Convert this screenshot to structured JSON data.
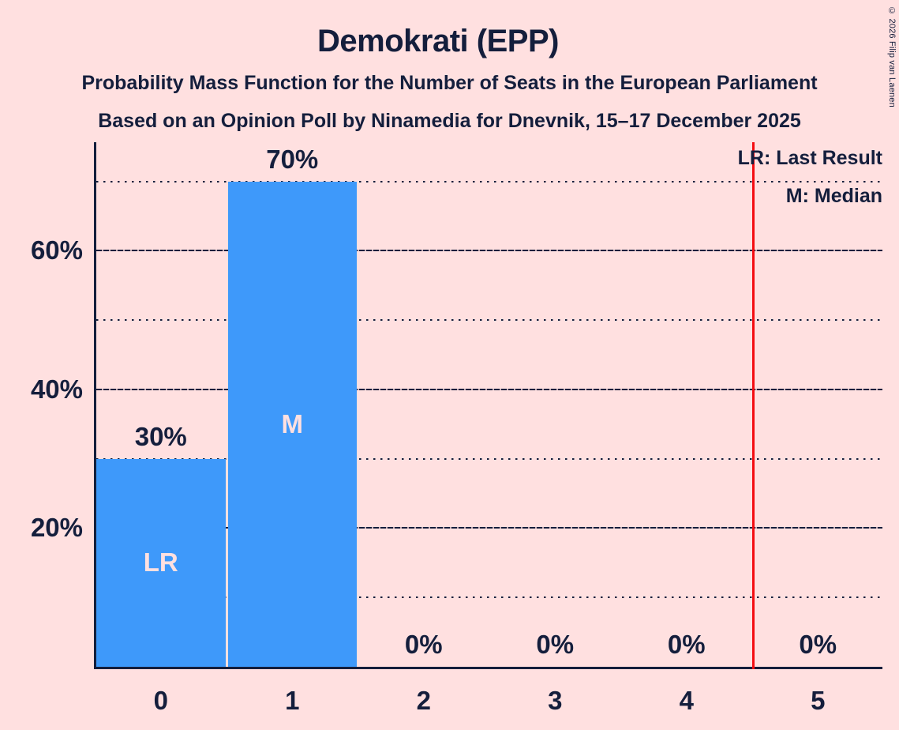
{
  "copyright": "© 2026 Filip van Laenen",
  "legend": {
    "last_result": "LR: Last Result",
    "median": "M: Median"
  },
  "chart_data": {
    "type": "bar",
    "title": "Demokrati (EPP)",
    "subtitle": "Probability Mass Function for the Number of Seats in the European Parliament",
    "subsubtitle": "Based on an Opinion Poll by Ninamedia for Dnevnik, 15–17 December 2025",
    "xlabel": "",
    "ylabel": "",
    "categories": [
      "0",
      "1",
      "2",
      "3",
      "4",
      "5"
    ],
    "values_pct": [
      30,
      70,
      0,
      0,
      0,
      0
    ],
    "bar_value_labels": [
      "30%",
      "70%",
      "0%",
      "0%",
      "0%",
      "0%"
    ],
    "bar_annotations": [
      {
        "index": 0,
        "label": "LR",
        "meaning": "Last Result"
      },
      {
        "index": 1,
        "label": "M",
        "meaning": "Median"
      }
    ],
    "y_ticks": [
      {
        "pct": 20,
        "label": "20%"
      },
      {
        "pct": 40,
        "label": "40%"
      },
      {
        "pct": 60,
        "label": "60%"
      }
    ],
    "solid_gridlines_pct": [
      20,
      40,
      60
    ],
    "dotted_gridlines_pct": [
      10,
      30,
      50,
      70
    ],
    "y_axis_max_pct": 76,
    "last_result_marker_x": 4.5,
    "grid_on": true,
    "legend_position": "top-right",
    "colors": {
      "background": "#FFE0E0",
      "bar": "#3E99FA",
      "text": "#141E3C",
      "last_result_line": "#F40D12",
      "bar_inner_label": "#FFE0E0"
    }
  }
}
